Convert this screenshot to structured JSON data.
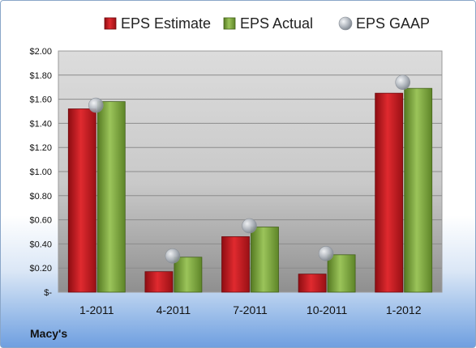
{
  "chart_data": {
    "type": "bar",
    "categories": [
      "1-2011",
      "4-2011",
      "7-2011",
      "10-2011",
      "1-2012"
    ],
    "series": [
      {
        "name": "EPS Estimate",
        "values": [
          1.52,
          0.17,
          0.46,
          0.15,
          1.65
        ],
        "color": "#c8171e"
      },
      {
        "name": "EPS Actual",
        "values": [
          1.58,
          0.29,
          0.54,
          0.31,
          1.69
        ],
        "color": "#7aa33b"
      },
      {
        "name": "EPS GAAP",
        "values": [
          1.55,
          0.3,
          0.55,
          0.32,
          1.74
        ],
        "color": "#b0b6bf"
      }
    ],
    "ylim": [
      0,
      2.0
    ],
    "yticks": [
      "$-",
      "$0.20",
      "$0.40",
      "$0.60",
      "$0.80",
      "$1.00",
      "$1.20",
      "$1.40",
      "$1.60",
      "$1.80",
      "$2.00"
    ],
    "grid": true,
    "legend_position": "top"
  },
  "company": "Macy's"
}
